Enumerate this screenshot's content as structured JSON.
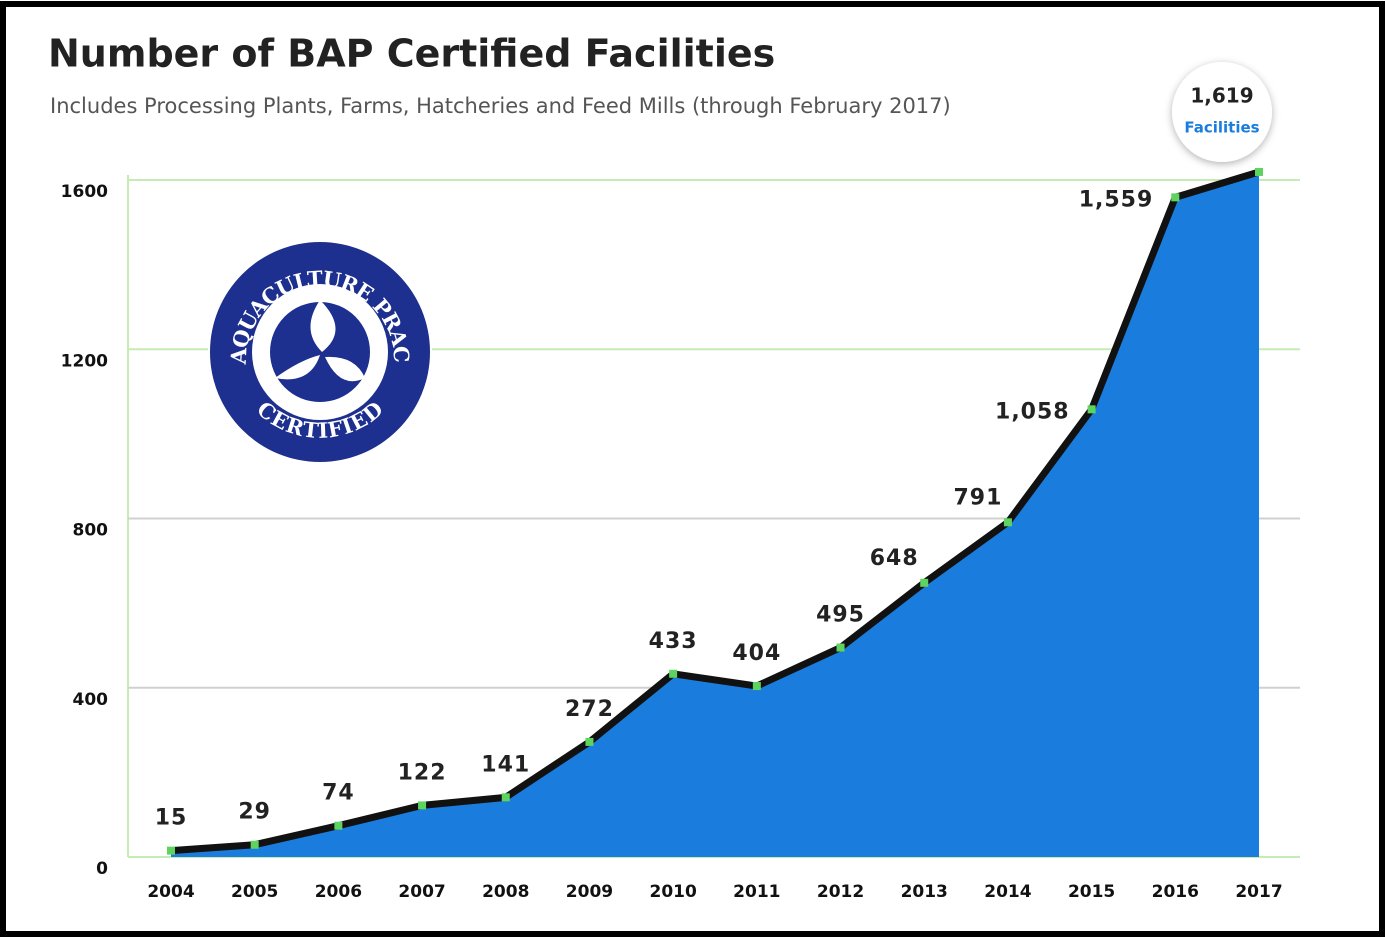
{
  "chart_data": {
    "type": "area",
    "title": "Number of BAP Certified Facilities",
    "subtitle": "Includes Processing Plants, Farms, Hatcheries and Feed Mills (through February 2017)",
    "categories": [
      "2004",
      "2005",
      "2006",
      "2007",
      "2008",
      "2009",
      "2010",
      "2011",
      "2012",
      "2013",
      "2014",
      "2015",
      "2016",
      "2017"
    ],
    "values": [
      15,
      29,
      74,
      122,
      141,
      272,
      433,
      404,
      495,
      648,
      791,
      1058,
      1559,
      1619
    ],
    "value_labels": [
      "15",
      "29",
      "74",
      "122",
      "141",
      "272",
      "433",
      "404",
      "495",
      "648",
      "791",
      "1,058",
      "1,559",
      "1,619"
    ],
    "callout_text": "Facilities",
    "color": "#1a7ddd",
    "line_color": "#111111",
    "marker_color": "#5fd35f",
    "ylim": [
      0,
      1600
    ],
    "yticks": [
      0,
      400,
      800,
      1200,
      1600
    ],
    "grid": true,
    "logo": {
      "top": "BEST AQUACULTURE PRACTICES",
      "bottom": "CERTIFIED"
    }
  }
}
